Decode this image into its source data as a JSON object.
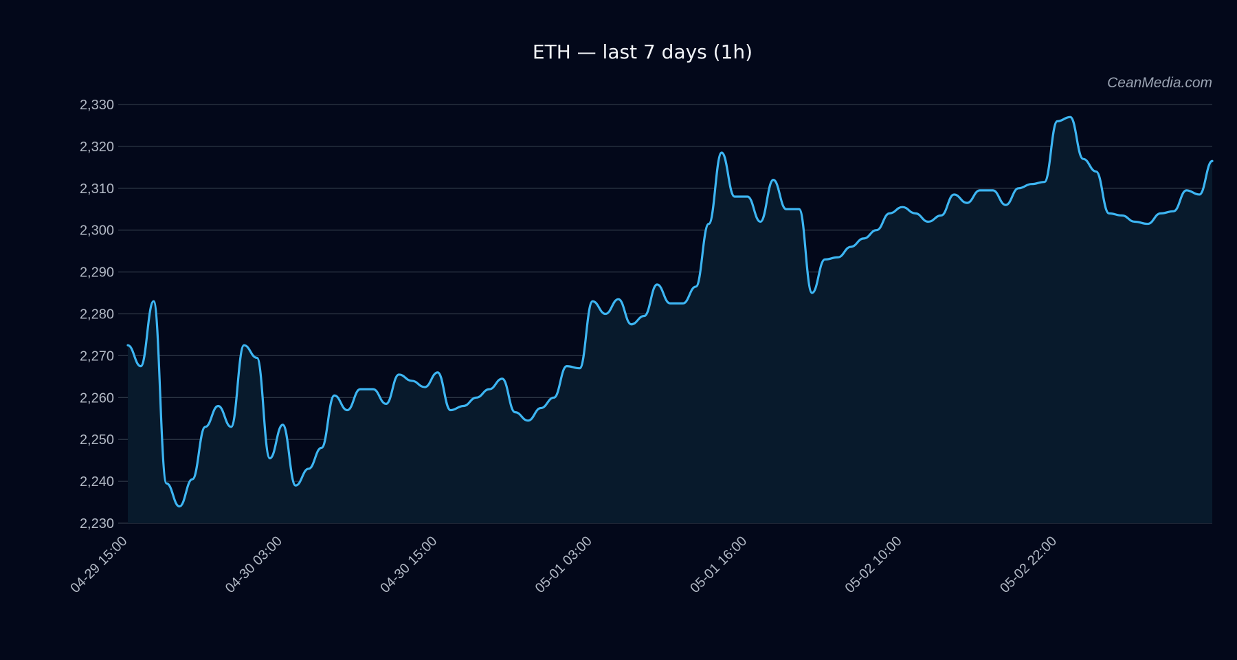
{
  "watermark": "CeanMedia.com",
  "colors": {
    "background": "#03081a",
    "line": "#3db5f2",
    "area": "#081a2c",
    "grid": "#2e3746"
  },
  "chart_data": {
    "type": "line",
    "title": "ETH — last 7 days (1h)",
    "xlabel": "",
    "ylabel": "",
    "grid": true,
    "legend": "none",
    "ylim": [
      2230,
      2330
    ],
    "yticks": [
      2230,
      2240,
      2250,
      2260,
      2270,
      2280,
      2290,
      2300,
      2310,
      2320,
      2330
    ],
    "ytick_labels": [
      "2,230",
      "2,240",
      "2,250",
      "2,260",
      "2,270",
      "2,280",
      "2,290",
      "2,300",
      "2,310",
      "2,320",
      "2,330"
    ],
    "xticks": [
      {
        "index": 0,
        "label": "04-29 15:00"
      },
      {
        "index": 12,
        "label": "04-30 03:00"
      },
      {
        "index": 24,
        "label": "04-30 15:00"
      },
      {
        "index": 36,
        "label": "05-01 03:00"
      },
      {
        "index": 48,
        "label": "05-01 16:00"
      },
      {
        "index": 60,
        "label": "05-02 10:00"
      },
      {
        "index": 72,
        "label": "05-02 22:00"
      }
    ],
    "series": [
      {
        "values": [
          2272.5,
          2267.5,
          2283,
          2239.5,
          2234,
          2240.5,
          2253,
          2258,
          2253,
          2272.5,
          2269.5,
          2245.5,
          2253.5,
          2239,
          2243,
          2248,
          2260.5,
          2257,
          2262,
          2262,
          2258.5,
          2265.5,
          2264,
          2262.5,
          2266,
          2257,
          2258,
          2260,
          2262,
          2264.5,
          2256.5,
          2254.5,
          2257.5,
          2260,
          2267.5,
          2267,
          2283,
          2280,
          2283.5,
          2277.5,
          2279.5,
          2287,
          2282.5,
          2282.5,
          2286.5,
          2301.5,
          2318.5,
          2308,
          2308,
          2302,
          2312,
          2305,
          2305,
          2285,
          2293,
          2293.5,
          2296,
          2298,
          2300,
          2304,
          2305.5,
          2304,
          2302,
          2303.5,
          2308.5,
          2306.5,
          2309.5,
          2309.5,
          2306,
          2310,
          2311,
          2311.5,
          2326,
          2327,
          2317,
          2314,
          2304,
          2303.5,
          2302,
          2301.5,
          2304,
          2304.5,
          2309.5,
          2308.5,
          2316.5
        ]
      }
    ]
  }
}
